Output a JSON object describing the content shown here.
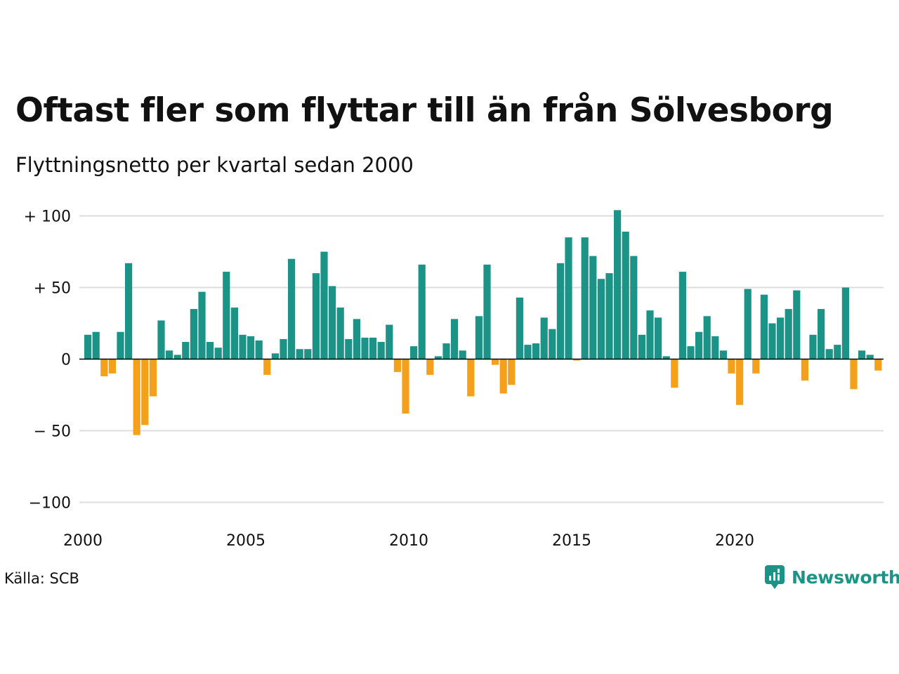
{
  "title": "Oftast fler som flyttar till än från Sölvesborg",
  "subtitle": "Flyttningsnetto per kvartal sedan 2000",
  "source": "Källa: SCB",
  "brand": "Newsworthy",
  "colors": {
    "positive": "#1b9487",
    "negative": "#f5a01a",
    "grid": "#dddddd",
    "zero": "#000000"
  },
  "chart_data": {
    "type": "bar",
    "x_start": 2000,
    "x_step": "quarter",
    "x_ticks": [
      2000,
      2005,
      2010,
      2015,
      2020
    ],
    "x_tick_labels": [
      "2000",
      "2005",
      "2010",
      "2015",
      "2020"
    ],
    "y_ticks": [
      100,
      50,
      0,
      -50,
      -100
    ],
    "y_tick_labels": [
      "+ 100",
      "+  50",
      "0",
      "− 50",
      "−100"
    ],
    "ylim": [
      -100,
      100
    ],
    "grid": true,
    "values": [
      17,
      19,
      -12,
      -10,
      19,
      67,
      -53,
      -46,
      -26,
      27,
      6,
      3,
      12,
      35,
      47,
      12,
      8,
      61,
      36,
      17,
      16,
      13,
      -11,
      4,
      14,
      70,
      7,
      7,
      60,
      75,
      51,
      36,
      14,
      28,
      15,
      15,
      12,
      24,
      -9,
      -38,
      9,
      66,
      -11,
      2,
      11,
      28,
      6,
      -26,
      30,
      66,
      -4,
      -24,
      -18,
      43,
      10,
      11,
      29,
      21,
      67,
      85,
      -1,
      85,
      72,
      56,
      60,
      104,
      89,
      72,
      17,
      34,
      29,
      2,
      -20,
      61,
      9,
      19,
      30,
      16,
      6,
      -10,
      -32,
      49,
      -10,
      45,
      25,
      29,
      35,
      48,
      -15,
      17,
      35,
      7,
      10,
      50,
      -21,
      6,
      3,
      -8
    ]
  }
}
